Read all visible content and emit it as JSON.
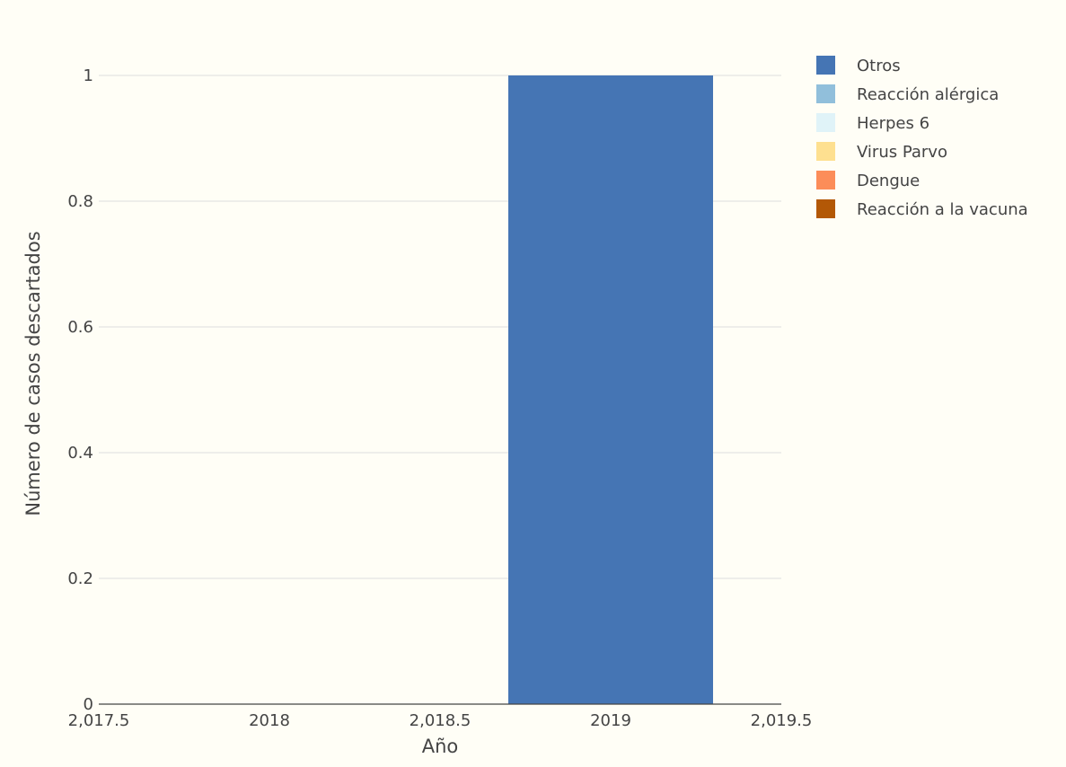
{
  "chart_data": {
    "type": "bar",
    "stacked": true,
    "xlabel": "Año",
    "ylabel": "Número de casos descartados",
    "xlim": [
      2017.5,
      2019.5
    ],
    "ylim": [
      0,
      1
    ],
    "x_tick_values": [
      2017.5,
      2018,
      2018.5,
      2019,
      2019.5
    ],
    "x_tick_labels": [
      "2,017.5",
      "2018",
      "2,018.5",
      "2019",
      "2,019.5"
    ],
    "y_tick_values": [
      0,
      0.2,
      0.4,
      0.6,
      0.8,
      1
    ],
    "y_tick_labels": [
      "0",
      "0.2",
      "0.4",
      "0.6",
      "0.8",
      "1"
    ],
    "bar_width": 1.0,
    "grid": true,
    "legend_position": "right",
    "x": [
      2019
    ],
    "series": [
      {
        "name": "Otros",
        "color": "#4575b4",
        "values": [
          1
        ]
      },
      {
        "name": "Reacción alérgica",
        "color": "#91bfdb",
        "values": [
          0
        ]
      },
      {
        "name": "Herpes 6",
        "color": "#e0f3f8",
        "values": [
          0
        ]
      },
      {
        "name": "Virus Parvo",
        "color": "#fee090",
        "values": [
          0
        ]
      },
      {
        "name": "Dengue",
        "color": "#fc8d59",
        "values": [
          0
        ]
      },
      {
        "name": "Reacción a la vacuna",
        "color": "#b35806",
        "values": [
          0
        ]
      }
    ]
  }
}
